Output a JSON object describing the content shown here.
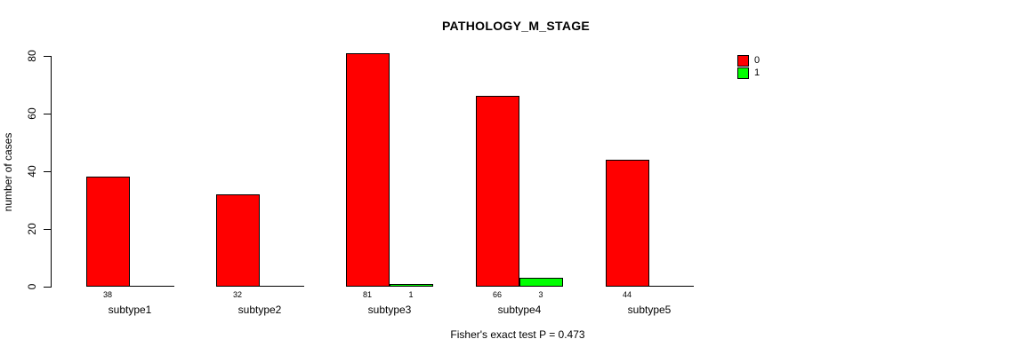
{
  "chart_data": {
    "type": "bar",
    "title": "PATHOLOGY_M_STAGE",
    "ylabel": "number of cases",
    "xlabel": "",
    "caption": "Fisher's exact test P = 0.473",
    "categories": [
      "subtype1",
      "subtype2",
      "subtype3",
      "subtype4",
      "subtype5"
    ],
    "series": [
      {
        "name": "0",
        "color": "#FF0000",
        "values": [
          38,
          32,
          81,
          66,
          44
        ]
      },
      {
        "name": "1",
        "color": "#00FF00",
        "values": [
          0,
          0,
          1,
          3,
          0
        ]
      }
    ],
    "yticks": [
      0,
      20,
      40,
      60,
      80
    ],
    "ylim": [
      0,
      80
    ],
    "legend_position": "top-right",
    "grid": false,
    "note": "zero-value bars are drawn as a flat baseline segment with no number label"
  }
}
